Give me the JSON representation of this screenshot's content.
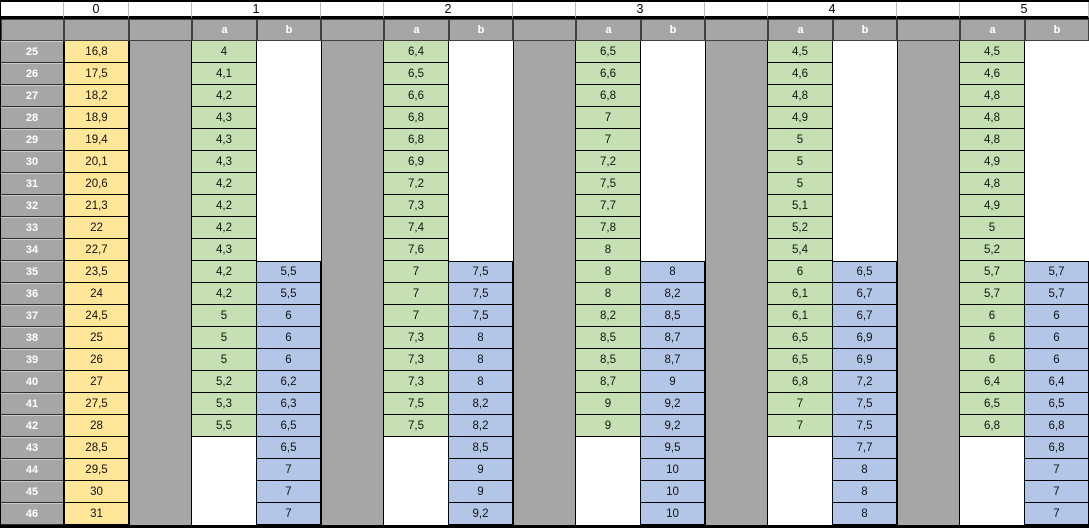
{
  "colors": {
    "yellow": "#FFE699",
    "green": "#C6E0B4",
    "blue": "#B4C6E7",
    "gray": "#A6A6A6"
  },
  "header": {
    "col0_label": "0",
    "group_labels": [
      "1",
      "2",
      "3",
      "4",
      "5"
    ],
    "sub_a": "a",
    "sub_b": "b"
  },
  "table": {
    "rows": [
      {
        "n": "25",
        "v0": "16,8",
        "g": [
          [
            "4",
            ""
          ],
          [
            "6,4",
            ""
          ],
          [
            "6,5",
            ""
          ],
          [
            "4,5",
            ""
          ],
          [
            "4,5",
            ""
          ]
        ]
      },
      {
        "n": "26",
        "v0": "17,5",
        "g": [
          [
            "4,1",
            ""
          ],
          [
            "6,5",
            ""
          ],
          [
            "6,6",
            ""
          ],
          [
            "4,6",
            ""
          ],
          [
            "4,6",
            ""
          ]
        ]
      },
      {
        "n": "27",
        "v0": "18,2",
        "g": [
          [
            "4,2",
            ""
          ],
          [
            "6,6",
            ""
          ],
          [
            "6,8",
            ""
          ],
          [
            "4,8",
            ""
          ],
          [
            "4,8",
            ""
          ]
        ]
      },
      {
        "n": "28",
        "v0": "18,9",
        "g": [
          [
            "4,3",
            ""
          ],
          [
            "6,8",
            ""
          ],
          [
            "7",
            ""
          ],
          [
            "4,9",
            ""
          ],
          [
            "4,8",
            ""
          ]
        ]
      },
      {
        "n": "29",
        "v0": "19,4",
        "g": [
          [
            "4,3",
            ""
          ],
          [
            "6,8",
            ""
          ],
          [
            "7",
            ""
          ],
          [
            "5",
            ""
          ],
          [
            "4,8",
            ""
          ]
        ]
      },
      {
        "n": "30",
        "v0": "20,1",
        "g": [
          [
            "4,3",
            ""
          ],
          [
            "6,9",
            ""
          ],
          [
            "7,2",
            ""
          ],
          [
            "5",
            ""
          ],
          [
            "4,9",
            ""
          ]
        ]
      },
      {
        "n": "31",
        "v0": "20,6",
        "g": [
          [
            "4,2",
            ""
          ],
          [
            "7,2",
            ""
          ],
          [
            "7,5",
            ""
          ],
          [
            "5",
            ""
          ],
          [
            "4,8",
            ""
          ]
        ]
      },
      {
        "n": "32",
        "v0": "21,3",
        "g": [
          [
            "4,2",
            ""
          ],
          [
            "7,3",
            ""
          ],
          [
            "7,7",
            ""
          ],
          [
            "5,1",
            ""
          ],
          [
            "4,9",
            ""
          ]
        ]
      },
      {
        "n": "33",
        "v0": "22",
        "g": [
          [
            "4,2",
            ""
          ],
          [
            "7,4",
            ""
          ],
          [
            "7,8",
            ""
          ],
          [
            "5,2",
            ""
          ],
          [
            "5",
            ""
          ]
        ]
      },
      {
        "n": "34",
        "v0": "22,7",
        "g": [
          [
            "4,3",
            ""
          ],
          [
            "7,6",
            ""
          ],
          [
            "8",
            ""
          ],
          [
            "5,4",
            ""
          ],
          [
            "5,2",
            ""
          ]
        ]
      },
      {
        "n": "35",
        "v0": "23,5",
        "g": [
          [
            "4,2",
            "5,5"
          ],
          [
            "7",
            "7,5"
          ],
          [
            "8",
            "8"
          ],
          [
            "6",
            "6,5"
          ],
          [
            "5,7",
            "5,7"
          ]
        ]
      },
      {
        "n": "36",
        "v0": "24",
        "g": [
          [
            "4,2",
            "5,5"
          ],
          [
            "7",
            "7,5"
          ],
          [
            "8",
            "8,2"
          ],
          [
            "6,1",
            "6,7"
          ],
          [
            "5,7",
            "5,7"
          ]
        ]
      },
      {
        "n": "37",
        "v0": "24,5",
        "g": [
          [
            "5",
            "6"
          ],
          [
            "7",
            "7,5"
          ],
          [
            "8,2",
            "8,5"
          ],
          [
            "6,1",
            "6,7"
          ],
          [
            "6",
            "6"
          ]
        ]
      },
      {
        "n": "38",
        "v0": "25",
        "g": [
          [
            "5",
            "6"
          ],
          [
            "7,3",
            "8"
          ],
          [
            "8,5",
            "8,7"
          ],
          [
            "6,5",
            "6,9"
          ],
          [
            "6",
            "6"
          ]
        ]
      },
      {
        "n": "39",
        "v0": "26",
        "g": [
          [
            "5",
            "6"
          ],
          [
            "7,3",
            "8"
          ],
          [
            "8,5",
            "8,7"
          ],
          [
            "6,5",
            "6,9"
          ],
          [
            "6",
            "6"
          ]
        ]
      },
      {
        "n": "40",
        "v0": "27",
        "g": [
          [
            "5,2",
            "6,2"
          ],
          [
            "7,3",
            "8"
          ],
          [
            "8,7",
            "9"
          ],
          [
            "6,8",
            "7,2"
          ],
          [
            "6,4",
            "6,4"
          ]
        ]
      },
      {
        "n": "41",
        "v0": "27,5",
        "g": [
          [
            "5,3",
            "6,3"
          ],
          [
            "7,5",
            "8,2"
          ],
          [
            "9",
            "9,2"
          ],
          [
            "7",
            "7,5"
          ],
          [
            "6,5",
            "6,5"
          ]
        ]
      },
      {
        "n": "42",
        "v0": "28",
        "g": [
          [
            "5,5",
            "6,5"
          ],
          [
            "7,5",
            "8,2"
          ],
          [
            "9",
            "9,2"
          ],
          [
            "7",
            "7,5"
          ],
          [
            "6,8",
            "6,8"
          ]
        ]
      },
      {
        "n": "43",
        "v0": "28,5",
        "g": [
          [
            "",
            "6,5"
          ],
          [
            "",
            "8,5"
          ],
          [
            "",
            "9,5"
          ],
          [
            "",
            "7,7"
          ],
          [
            "",
            "6,8"
          ]
        ]
      },
      {
        "n": "44",
        "v0": "29,5",
        "g": [
          [
            "",
            "7"
          ],
          [
            "",
            "9"
          ],
          [
            "",
            "10"
          ],
          [
            "",
            "8"
          ],
          [
            "",
            "7"
          ]
        ]
      },
      {
        "n": "45",
        "v0": "30",
        "g": [
          [
            "",
            "7"
          ],
          [
            "",
            "9"
          ],
          [
            "",
            "10"
          ],
          [
            "",
            "8"
          ],
          [
            "",
            "7"
          ]
        ]
      },
      {
        "n": "46",
        "v0": "31",
        "g": [
          [
            "",
            "7"
          ],
          [
            "",
            "9,2"
          ],
          [
            "",
            "10"
          ],
          [
            "",
            "8"
          ],
          [
            "",
            "7"
          ]
        ]
      }
    ]
  }
}
